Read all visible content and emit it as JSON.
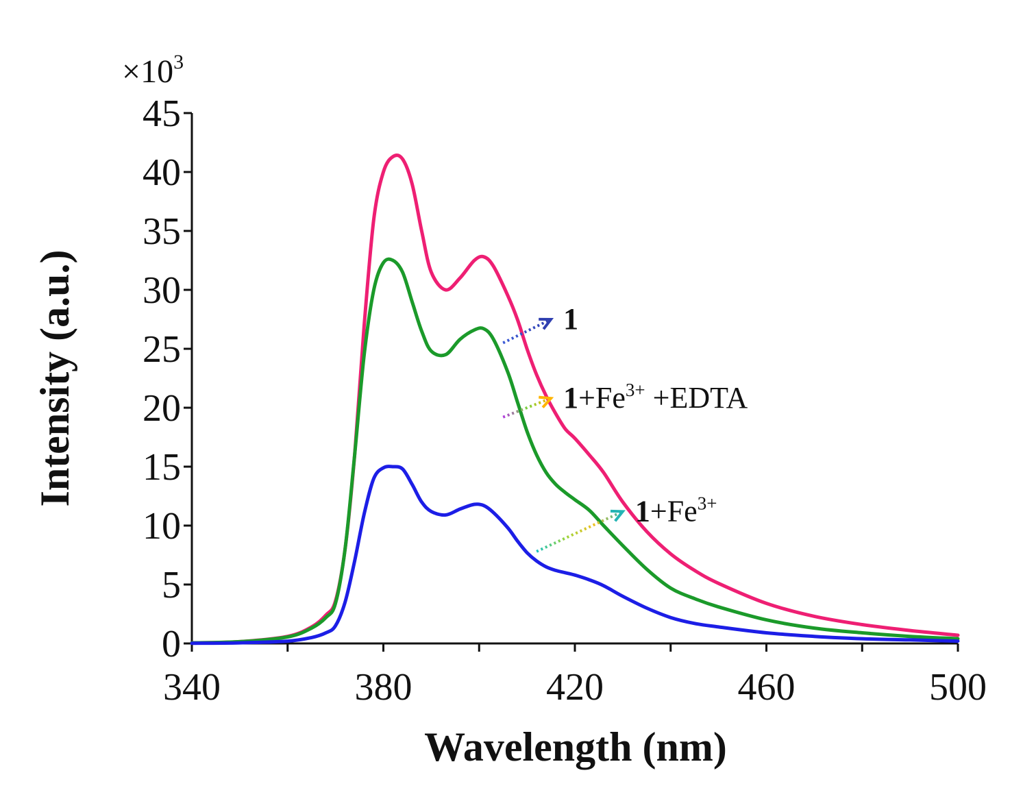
{
  "chart_data": {
    "type": "line",
    "title": "",
    "xlabel": "Wavelength (nm)",
    "ylabel": "Intensity (a.u.)",
    "y_multiplier": {
      "base": "×10",
      "exponent": "3"
    },
    "xlim": [
      340,
      500
    ],
    "ylim": [
      0,
      45
    ],
    "x_ticks": [
      340,
      380,
      420,
      460,
      500
    ],
    "x_minor_step": 20,
    "y_ticks": [
      0,
      5,
      10,
      15,
      20,
      25,
      30,
      35,
      40,
      45
    ],
    "grid": false,
    "legend": "inline-annotations",
    "x": [
      340,
      350,
      360,
      365,
      368,
      370,
      372,
      374,
      376,
      378,
      380,
      382,
      384,
      386,
      388,
      390,
      393,
      396,
      399,
      401,
      403,
      406,
      408,
      410,
      412,
      414,
      416,
      418,
      420,
      423,
      426,
      430,
      435,
      440,
      445,
      450,
      460,
      470,
      480,
      490,
      500
    ],
    "series": [
      {
        "name": "1",
        "color": "#ee1f73",
        "values": [
          0.05,
          0.15,
          0.6,
          1.4,
          2.4,
          3.6,
          8.0,
          16.0,
          27.0,
          36.0,
          40.0,
          41.3,
          41.1,
          39.0,
          35.0,
          31.5,
          30.0,
          31.0,
          32.5,
          32.8,
          32.0,
          29.5,
          27.5,
          25.0,
          22.8,
          21.0,
          19.5,
          18.2,
          17.4,
          16.0,
          14.5,
          12.0,
          9.5,
          7.6,
          6.2,
          5.1,
          3.4,
          2.3,
          1.6,
          1.1,
          0.7
        ]
      },
      {
        "name": "1+Fe³⁺+EDTA",
        "color": "#1b9a2a",
        "values": [
          0.05,
          0.15,
          0.55,
          1.3,
          2.2,
          3.4,
          8.0,
          16.0,
          24.5,
          30.0,
          32.3,
          32.5,
          31.5,
          29.0,
          26.5,
          24.8,
          24.5,
          25.8,
          26.6,
          26.7,
          25.8,
          23.0,
          20.5,
          18.0,
          16.0,
          14.5,
          13.5,
          12.8,
          12.2,
          11.3,
          10.0,
          8.3,
          6.3,
          4.7,
          3.8,
          3.1,
          2.0,
          1.3,
          0.9,
          0.6,
          0.4
        ]
      },
      {
        "name": "1+Fe³⁺",
        "color": "#1c1ee6",
        "values": [
          0.02,
          0.05,
          0.2,
          0.5,
          0.9,
          1.5,
          3.5,
          7.0,
          11.0,
          14.0,
          14.9,
          15.0,
          14.8,
          13.5,
          12.0,
          11.2,
          10.9,
          11.4,
          11.8,
          11.7,
          11.1,
          9.8,
          8.7,
          7.7,
          7.0,
          6.5,
          6.2,
          6.0,
          5.8,
          5.4,
          4.9,
          4.0,
          3.0,
          2.2,
          1.7,
          1.4,
          0.9,
          0.6,
          0.4,
          0.3,
          0.2
        ]
      }
    ],
    "annotations": [
      {
        "label_bold": "1",
        "label_rest": "",
        "superscript": "",
        "suffix": "",
        "arrow_from": [
          405,
          25.5
        ],
        "arrow_to": [
          415,
          27.5
        ],
        "arrow_colors": [
          "#3c5bd6",
          "#2f3fb0"
        ]
      },
      {
        "label_bold": "1",
        "label_rest": "+Fe",
        "superscript": "3+",
        "suffix": " +EDTA",
        "arrow_from": [
          405,
          19.2
        ],
        "arrow_to": [
          415,
          20.8
        ],
        "arrow_colors": [
          "#b43ce0",
          "#7ad23c",
          "#ffb400"
        ]
      },
      {
        "label_bold": "1",
        "label_rest": "+Fe",
        "superscript": "3+",
        "suffix": "",
        "arrow_from": [
          412,
          7.8
        ],
        "arrow_to": [
          430,
          11.2
        ],
        "arrow_colors": [
          "#19c2c2",
          "#9ad43c",
          "#f0c020",
          "#24b4b4"
        ]
      }
    ]
  }
}
